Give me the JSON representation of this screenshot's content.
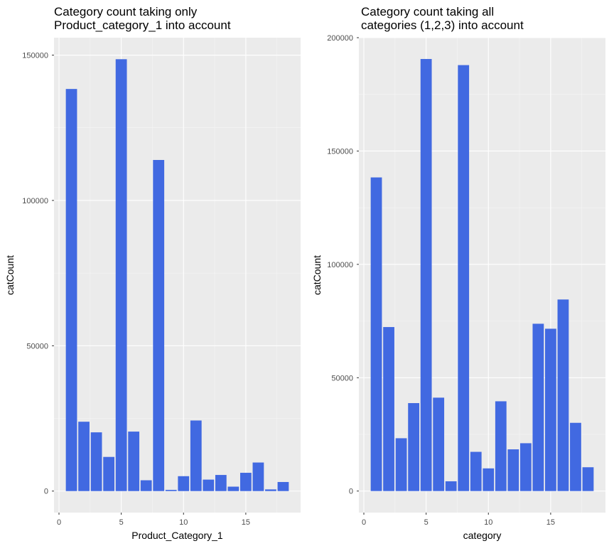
{
  "chart_data": [
    {
      "type": "bar",
      "title_lines": [
        "Category count taking only",
        "Product_category_1 into account"
      ],
      "xlabel": "Product_Category_1",
      "ylabel": "catCount",
      "xlim": [
        -0.4,
        19.4
      ],
      "ylim": [
        -7400,
        156000
      ],
      "x_ticks": [
        0,
        5,
        10,
        15
      ],
      "x_tick_labels": [
        "0",
        "5",
        "10",
        "15"
      ],
      "y_ticks": [
        0,
        50000,
        100000,
        150000
      ],
      "y_tick_labels": [
        "0",
        "50000",
        "100000",
        "150000"
      ],
      "grid": true,
      "bar_color": "#4169E1",
      "x": [
        1,
        2,
        3,
        4,
        5,
        6,
        7,
        8,
        9,
        10,
        11,
        12,
        13,
        14,
        15,
        16,
        17,
        18
      ],
      "values": [
        138353,
        23864,
        20213,
        11753,
        148592,
        20466,
        3721,
        113925,
        410,
        5125,
        24287,
        3947,
        5549,
        1523,
        6290,
        9828,
        578,
        3125
      ]
    },
    {
      "type": "bar",
      "title_lines": [
        "Category count taking all",
        "categories (1,2,3) into account"
      ],
      "xlabel": "category",
      "ylabel": "catCount",
      "xlim": [
        -0.4,
        19.4
      ],
      "ylim": [
        -9500,
        200000
      ],
      "x_ticks": [
        0,
        5,
        10,
        15
      ],
      "x_tick_labels": [
        "0",
        "5",
        "10",
        "15"
      ],
      "y_ticks": [
        0,
        50000,
        100000,
        150000,
        200000
      ],
      "y_tick_labels": [
        "0",
        "50000",
        "100000",
        "150000",
        "200000"
      ],
      "grid": true,
      "bar_color": "#4169E1",
      "x": [
        1,
        2,
        3,
        4,
        5,
        6,
        7,
        8,
        9,
        10,
        11,
        12,
        13,
        14,
        15,
        16,
        17,
        18
      ],
      "values": [
        138353,
        72344,
        23300,
        38800,
        190600,
        41200,
        4300,
        187900,
        17300,
        10000,
        39600,
        18400,
        21100,
        73800,
        71600,
        84500,
        30100,
        10500
      ]
    }
  ]
}
